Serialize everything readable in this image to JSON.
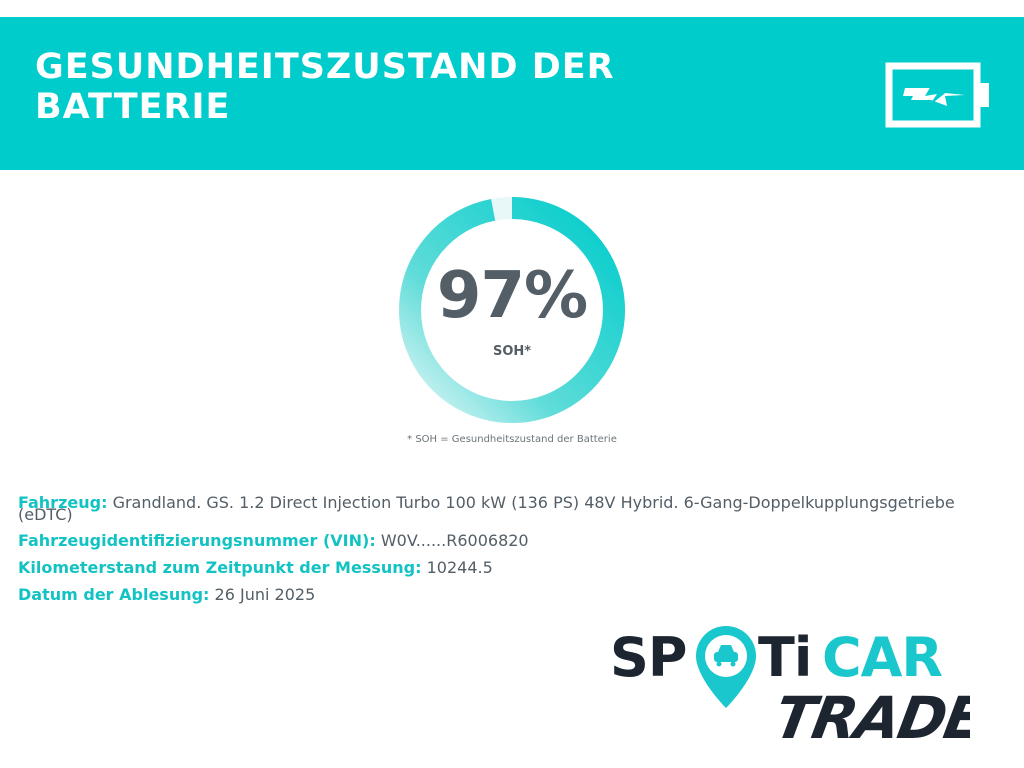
{
  "header": {
    "title": "GESUNDHEITSZUSTAND DER BATTERIE",
    "icon": "battery-charging-icon",
    "color": "#00cccb"
  },
  "gauge": {
    "value_percent": 97,
    "value_text": "97%",
    "label": "SOH*",
    "footnote": "* SOH = Gesundheitszustand der Batterie",
    "ring_color": "#00cccb"
  },
  "details": {
    "vehicle": {
      "label": "Fahrzeug:",
      "value": "Grandland. GS. 1.2 Direct Injection Turbo 100 kW (136 PS) 48V Hybrid. 6-Gang-Doppelkupplungsgetriebe",
      "value_wrap": "(eDTC)"
    },
    "vin": {
      "label": "Fahrzeugidentifizierungsnummer (VIN):",
      "value": "W0V......R6006820"
    },
    "mileage": {
      "label": "Kilometerstand zum Zeitpunkt der Messung:",
      "value": "10244.5"
    },
    "date": {
      "label": "Datum der Ablesung:",
      "value": "26 Juni 2025"
    }
  },
  "logo": {
    "line1": "SPOTiCAR",
    "line2": "TRADE",
    "icon": "car-location-pin-icon"
  }
}
